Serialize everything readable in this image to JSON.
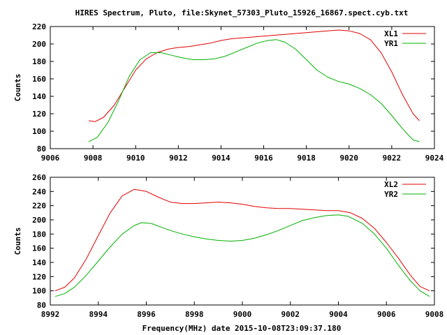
{
  "title": "HIRES Spectrum, Pluto, file:Skynet_57303_Pluto_15926_16867.spect.cyb.txt",
  "xlabel": "Frequency(MHz) date 2015-10-08T23:09:37.180",
  "colors": {
    "series_red": "#e00000",
    "series_green": "#00b000",
    "axes": "#000000"
  },
  "chart_data": [
    {
      "type": "line",
      "title": "HIRES Spectrum, Pluto, file:Skynet_57303_Pluto_15926_16867.spect.cyb.txt",
      "xlabel": "",
      "ylabel": "Counts",
      "xlim": [
        9006,
        9024
      ],
      "ylim": [
        80,
        220
      ],
      "xticks": [
        9006,
        9008,
        9010,
        9012,
        9014,
        9016,
        9018,
        9020,
        9022,
        9024
      ],
      "yticks": [
        80,
        100,
        120,
        140,
        160,
        180,
        200,
        220
      ],
      "grid": false,
      "legend": "top-right",
      "series": [
        {
          "name": "XL1",
          "color": "#e00000",
          "points": [
            [
              9007.8,
              112
            ],
            [
              9008.1,
              111
            ],
            [
              9008.5,
              116
            ],
            [
              9009.0,
              130
            ],
            [
              9009.5,
              150
            ],
            [
              9010.0,
              170
            ],
            [
              9010.5,
              183
            ],
            [
              9011.0,
              190
            ],
            [
              9011.5,
              194
            ],
            [
              9012.0,
              196
            ],
            [
              9012.5,
              197
            ],
            [
              9013.0,
              199
            ],
            [
              9013.5,
              201
            ],
            [
              9014.0,
              204
            ],
            [
              9014.5,
              206
            ],
            [
              9015.0,
              207
            ],
            [
              9015.5,
              208
            ],
            [
              9016.0,
              209
            ],
            [
              9016.5,
              210
            ],
            [
              9017.0,
              211
            ],
            [
              9017.5,
              212
            ],
            [
              9018.0,
              213
            ],
            [
              9018.5,
              214
            ],
            [
              9019.0,
              215
            ],
            [
              9019.5,
              216
            ],
            [
              9020.0,
              215
            ],
            [
              9020.5,
              212
            ],
            [
              9021.0,
              205
            ],
            [
              9021.5,
              190
            ],
            [
              9022.0,
              168
            ],
            [
              9022.5,
              142
            ],
            [
              9023.0,
              120
            ],
            [
              9023.3,
              112
            ]
          ]
        },
        {
          "name": "YR1",
          "color": "#00b000",
          "points": [
            [
              9007.8,
              88
            ],
            [
              9008.2,
              93
            ],
            [
              9008.7,
              110
            ],
            [
              9009.2,
              135
            ],
            [
              9009.7,
              163
            ],
            [
              9010.2,
              182
            ],
            [
              9010.7,
              190
            ],
            [
              9011.2,
              190
            ],
            [
              9011.7,
              187
            ],
            [
              9012.2,
              184
            ],
            [
              9012.7,
              182
            ],
            [
              9013.2,
              182
            ],
            [
              9013.7,
              183
            ],
            [
              9014.2,
              186
            ],
            [
              9014.7,
              191
            ],
            [
              9015.2,
              196
            ],
            [
              9015.7,
              201
            ],
            [
              9016.2,
              204
            ],
            [
              9016.6,
              205
            ],
            [
              9017.0,
              202
            ],
            [
              9017.5,
              194
            ],
            [
              9018.0,
              182
            ],
            [
              9018.5,
              170
            ],
            [
              9019.0,
              162
            ],
            [
              9019.5,
              157
            ],
            [
              9020.0,
              154
            ],
            [
              9020.5,
              149
            ],
            [
              9021.0,
              142
            ],
            [
              9021.5,
              132
            ],
            [
              9022.0,
              118
            ],
            [
              9022.5,
              103
            ],
            [
              9023.0,
              90
            ],
            [
              9023.3,
              88
            ]
          ]
        }
      ]
    },
    {
      "type": "line",
      "title": "",
      "xlabel": "Frequency(MHz) date 2015-10-08T23:09:37.180",
      "ylabel": "Counts",
      "xlim": [
        8992,
        9008
      ],
      "ylim": [
        80,
        260
      ],
      "xticks": [
        8992,
        8994,
        8996,
        8998,
        9000,
        9002,
        9004,
        9006,
        9008
      ],
      "yticks": [
        80,
        100,
        120,
        140,
        160,
        180,
        200,
        220,
        240,
        260
      ],
      "grid": false,
      "legend": "top-right",
      "series": [
        {
          "name": "XL2",
          "color": "#e00000",
          "points": [
            [
              8992.2,
              100
            ],
            [
              8992.6,
              105
            ],
            [
              8993.0,
              118
            ],
            [
              8993.5,
              145
            ],
            [
              8994.0,
              178
            ],
            [
              8994.5,
              210
            ],
            [
              8995.0,
              234
            ],
            [
              8995.5,
              243
            ],
            [
              8996.0,
              240
            ],
            [
              8996.5,
              232
            ],
            [
              8997.0,
              225
            ],
            [
              8997.5,
              223
            ],
            [
              8998.0,
              223
            ],
            [
              8998.5,
              224
            ],
            [
              8999.0,
              225
            ],
            [
              8999.5,
              224
            ],
            [
              9000.0,
              222
            ],
            [
              9000.5,
              219
            ],
            [
              9001.0,
              217
            ],
            [
              9001.5,
              216
            ],
            [
              9002.0,
              216
            ],
            [
              9002.5,
              215
            ],
            [
              9003.0,
              214
            ],
            [
              9003.5,
              213
            ],
            [
              9004.0,
              213
            ],
            [
              9004.5,
              210
            ],
            [
              9005.0,
              202
            ],
            [
              9005.5,
              188
            ],
            [
              9006.0,
              168
            ],
            [
              9006.5,
              146
            ],
            [
              9007.0,
              122
            ],
            [
              9007.4,
              106
            ],
            [
              9007.8,
              100
            ]
          ]
        },
        {
          "name": "YR2",
          "color": "#00b000",
          "points": [
            [
              8992.2,
              92
            ],
            [
              8992.6,
              96
            ],
            [
              8993.0,
              105
            ],
            [
              8993.5,
              122
            ],
            [
              8994.0,
              142
            ],
            [
              8994.5,
              162
            ],
            [
              8995.0,
              180
            ],
            [
              8995.5,
              192
            ],
            [
              8995.8,
              196
            ],
            [
              8996.2,
              195
            ],
            [
              8996.6,
              190
            ],
            [
              8997.0,
              185
            ],
            [
              8997.5,
              180
            ],
            [
              8998.0,
              176
            ],
            [
              8998.5,
              173
            ],
            [
              8999.0,
              171
            ],
            [
              8999.5,
              170
            ],
            [
              9000.0,
              171
            ],
            [
              9000.5,
              174
            ],
            [
              9001.0,
              179
            ],
            [
              9001.5,
              185
            ],
            [
              9002.0,
              192
            ],
            [
              9002.5,
              199
            ],
            [
              9003.0,
              203
            ],
            [
              9003.5,
              206
            ],
            [
              9004.0,
              207
            ],
            [
              9004.4,
              205
            ],
            [
              9005.0,
              195
            ],
            [
              9005.5,
              180
            ],
            [
              9006.0,
              160
            ],
            [
              9006.5,
              136
            ],
            [
              9007.0,
              114
            ],
            [
              9007.4,
              100
            ],
            [
              9007.8,
              92
            ]
          ]
        }
      ]
    }
  ]
}
